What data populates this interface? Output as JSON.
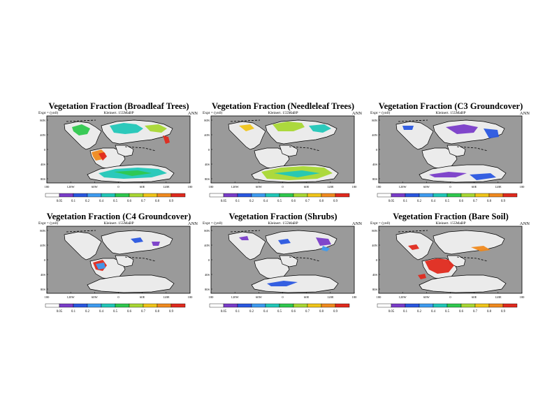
{
  "colors": {
    "ocean": "#9a9a9a",
    "land_empty": "#ebebeb",
    "coast": "#000000",
    "colorbar": [
      "#ffffff",
      "#7a3dc9",
      "#2a57e0",
      "#3e9bf0",
      "#22c7b8",
      "#2fc84e",
      "#a9d834",
      "#f0c51a",
      "#f08a1f",
      "#e02a1e"
    ]
  },
  "shared": {
    "left_label": "Expt = (yn0)",
    "experiment": "Kleinert. 155MaBP",
    "period": "ANN",
    "lat_ticks": [
      "80N",
      "40N",
      "0",
      "40S",
      "80S"
    ],
    "lon_ticks": [
      "180",
      "120W",
      "60W",
      "0",
      "60E",
      "120E",
      "180"
    ],
    "cbar_ticks": [
      "0.05",
      "0.1",
      "0.2",
      "0.4",
      "0.5",
      "0.6",
      "0.7",
      "0.8",
      "0.9"
    ]
  },
  "panels": [
    {
      "title": "Vegetation Fraction (Broadleaf Trees)"
    },
    {
      "title": "Vegetation Fraction (Needleleaf Trees)"
    },
    {
      "title": "Vegetation Fraction (C3 Groundcover)"
    },
    {
      "title": "Vegetation Fraction (C4 Groundcover)"
    },
    {
      "title": "Vegetation Fraction (Shrubs)"
    },
    {
      "title": "Vegetation Fraction (Bare Soil)"
    }
  ]
}
